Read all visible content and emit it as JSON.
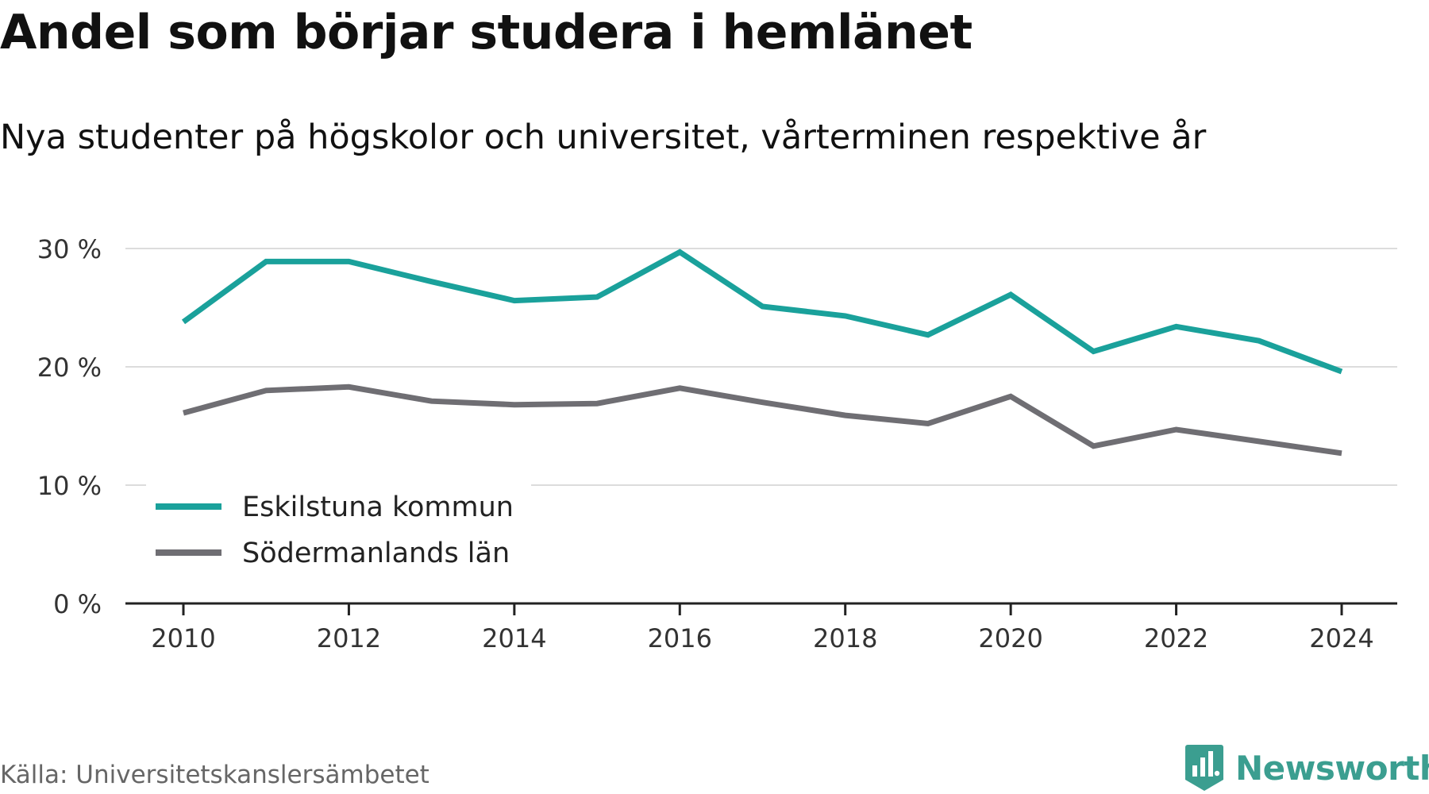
{
  "chart_data": {
    "type": "line",
    "title": "Andel som börjar studera i hemlänet",
    "subtitle": "Nya studenter på högskolor och universitet, vårterminen respektive år",
    "xlabel": "",
    "ylabel": "",
    "x": [
      2010,
      2011,
      2012,
      2013,
      2014,
      2015,
      2016,
      2017,
      2018,
      2019,
      2020,
      2021,
      2022,
      2023,
      2024
    ],
    "series": [
      {
        "name": "Eskilstuna kommun",
        "color": "#1aa19b",
        "values": [
          23.8,
          28.9,
          28.9,
          27.2,
          25.6,
          25.9,
          29.7,
          25.1,
          24.3,
          22.7,
          26.1,
          21.3,
          23.4,
          22.2,
          19.6
        ]
      },
      {
        "name": "Södermanlands län",
        "color": "#6f6e73",
        "values": [
          16.1,
          18.0,
          18.3,
          17.1,
          16.8,
          16.9,
          18.2,
          17.0,
          15.9,
          15.2,
          17.5,
          13.3,
          14.7,
          13.7,
          12.7
        ]
      }
    ],
    "ylim": [
      0,
      30
    ],
    "y_ticks": [
      0,
      10,
      20,
      30
    ],
    "y_tick_labels": [
      "0 %",
      "10 %",
      "20 %",
      "30 %"
    ],
    "x_ticks": [
      2010,
      2012,
      2014,
      2016,
      2018,
      2020,
      2022,
      2024
    ],
    "x_tick_labels": [
      "2010",
      "2012",
      "2014",
      "2016",
      "2018",
      "2020",
      "2022",
      "2024"
    ],
    "grid": true,
    "legend_placement": "bottom-left"
  },
  "source": "Källa: Universitetskanslersämbetet",
  "brand": {
    "name": "Newsworthy",
    "icon": "newsworthy-logo-icon",
    "color": "#3b9e90"
  }
}
